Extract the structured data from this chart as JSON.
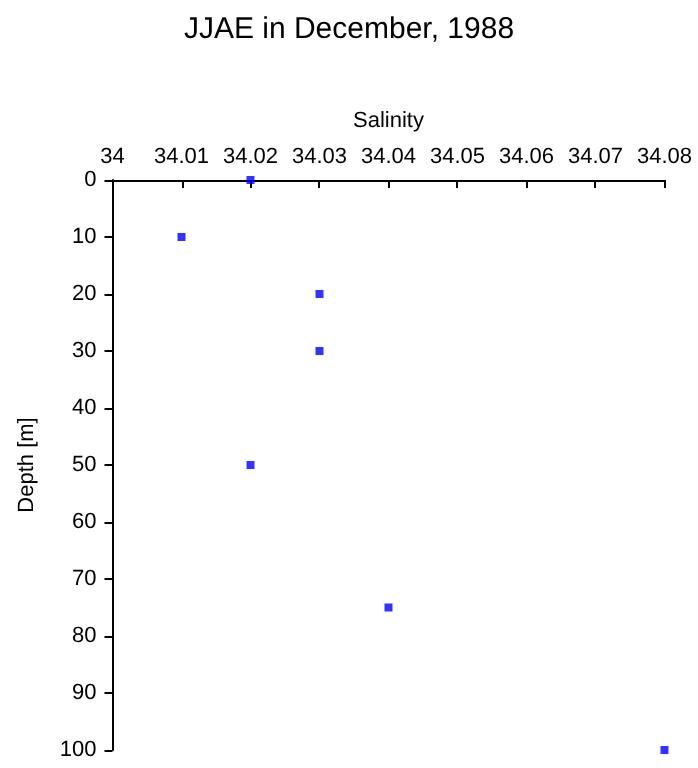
{
  "chart_data": {
    "type": "scatter",
    "title": "JJAE in December, 1988",
    "xlabel": "Salinity",
    "ylabel": "Depth [m]",
    "x": [
      34.02,
      34.01,
      34.03,
      34.03,
      34.02,
      34.04,
      34.08
    ],
    "values": [
      0,
      10,
      20,
      30,
      50,
      75,
      100
    ],
    "color": "#0000ff",
    "marker": "square",
    "xlim": [
      34,
      34.08
    ],
    "xticks": [
      "34",
      34.01,
      34.02,
      34.03,
      34.04,
      34.05,
      34.06,
      34.07,
      34.08
    ],
    "ylim": [
      100,
      0
    ],
    "yticks": [
      0,
      10,
      20,
      30,
      40,
      50,
      60,
      70,
      80,
      90,
      100
    ],
    "grid": false
  }
}
